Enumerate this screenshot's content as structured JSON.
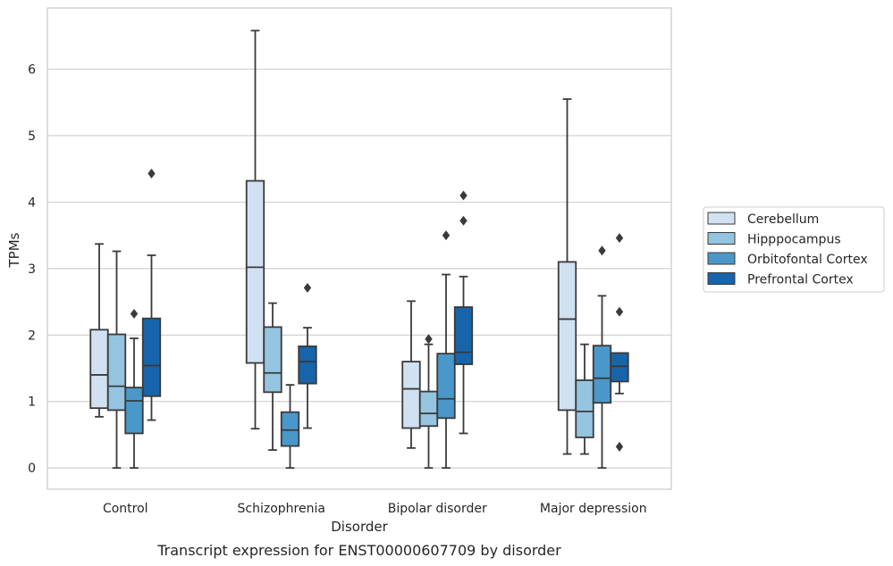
{
  "chart_data": {
    "type": "boxplot",
    "xlabel": "Disorder",
    "ylabel": "TPMs",
    "caption": "Transcript expression for ENST00000607709 by disorder",
    "ylim": [
      -0.32,
      6.92
    ],
    "yticks": [
      0,
      1,
      2,
      3,
      4,
      5,
      6
    ],
    "grid": "horizontal",
    "legend_position": "right",
    "categories": [
      "Control",
      "Schizophrenia",
      "Bipolar disorder",
      "Major depression"
    ],
    "series": [
      {
        "name": "Cerebellum",
        "color": "#d0e1f2",
        "boxes": [
          {
            "whislo": 0.77,
            "q1": 0.9,
            "med": 1.4,
            "q3": 2.08,
            "whishi": 3.37,
            "fliers": []
          },
          {
            "whislo": 0.59,
            "q1": 1.58,
            "med": 3.02,
            "q3": 4.32,
            "whishi": 6.58,
            "fliers": []
          },
          {
            "whislo": 0.3,
            "q1": 0.6,
            "med": 1.19,
            "q3": 1.6,
            "whishi": 2.51,
            "fliers": []
          },
          {
            "whislo": 0.21,
            "q1": 0.87,
            "med": 2.24,
            "q3": 3.1,
            "whishi": 5.55,
            "fliers": []
          }
        ]
      },
      {
        "name": "Hipppocampus",
        "color": "#94c4df",
        "boxes": [
          {
            "whislo": 0.0,
            "q1": 0.87,
            "med": 1.23,
            "q3": 2.01,
            "whishi": 3.26,
            "fliers": []
          },
          {
            "whislo": 0.27,
            "q1": 1.14,
            "med": 1.43,
            "q3": 2.12,
            "whishi": 2.48,
            "fliers": []
          },
          {
            "whislo": 0.0,
            "q1": 0.63,
            "med": 0.82,
            "q3": 1.15,
            "whishi": 1.86,
            "fliers": [
              1.94
            ]
          },
          {
            "whislo": 0.21,
            "q1": 0.46,
            "med": 0.85,
            "q3": 1.32,
            "whishi": 1.86,
            "fliers": []
          }
        ]
      },
      {
        "name": "Orbitofontal Cortex",
        "color": "#4a98c9",
        "boxes": [
          {
            "whislo": 0.0,
            "q1": 0.52,
            "med": 1.01,
            "q3": 1.21,
            "whishi": 1.95,
            "fliers": [
              2.32
            ]
          },
          {
            "whislo": 0.0,
            "q1": 0.33,
            "med": 0.57,
            "q3": 0.84,
            "whishi": 1.25,
            "fliers": []
          },
          {
            "whislo": 0.0,
            "q1": 0.75,
            "med": 1.04,
            "q3": 1.72,
            "whishi": 2.91,
            "fliers": [
              3.5
            ]
          },
          {
            "whislo": 0.0,
            "q1": 0.98,
            "med": 1.35,
            "q3": 1.84,
            "whishi": 2.59,
            "fliers": [
              3.27
            ]
          }
        ]
      },
      {
        "name": "Prefrontal Cortex",
        "color": "#1764ab",
        "boxes": [
          {
            "whislo": 0.72,
            "q1": 1.08,
            "med": 1.54,
            "q3": 2.25,
            "whishi": 3.2,
            "fliers": [
              4.43
            ]
          },
          {
            "whislo": 0.6,
            "q1": 1.27,
            "med": 1.6,
            "q3": 1.83,
            "whishi": 2.11,
            "fliers": [
              2.71
            ]
          },
          {
            "whislo": 0.52,
            "q1": 1.56,
            "med": 1.74,
            "q3": 2.42,
            "whishi": 2.88,
            "fliers": [
              3.72,
              4.1
            ]
          },
          {
            "whislo": 1.12,
            "q1": 1.3,
            "med": 1.53,
            "q3": 1.73,
            "whishi": 1.73,
            "fliers": [
              0.32,
              2.35,
              3.46
            ]
          }
        ]
      }
    ]
  }
}
